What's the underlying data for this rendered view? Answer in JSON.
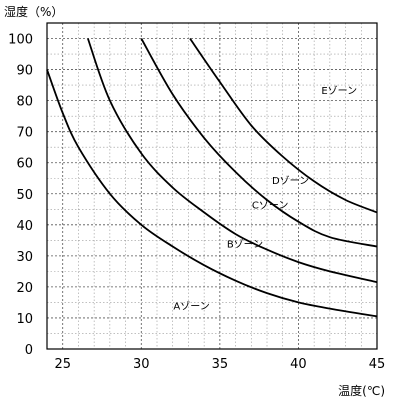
{
  "chart_data": {
    "type": "line",
    "ylabel": "湿度（%）",
    "xlabel": "温度(℃)",
    "xlim": [
      24,
      45
    ],
    "ylim": [
      0,
      105
    ],
    "x_ticks": [
      25,
      30,
      35,
      40,
      45
    ],
    "y_ticks": [
      0,
      10,
      20,
      30,
      40,
      50,
      60,
      70,
      80,
      90,
      100
    ],
    "grid": true,
    "series": [
      {
        "x": [
          24,
          25,
          26,
          28,
          30,
          32,
          34,
          36,
          38,
          40,
          42,
          45
        ],
        "y": [
          90,
          76,
          65,
          50,
          40,
          33,
          27,
          22,
          18,
          15,
          13,
          10.5
        ]
      },
      {
        "x": [
          26.6,
          28,
          30,
          32,
          34,
          36,
          38,
          40,
          42,
          45
        ],
        "y": [
          100,
          80,
          63,
          52,
          44,
          37,
          32,
          28,
          25,
          21.5
        ]
      },
      {
        "x": [
          30,
          32,
          34,
          36,
          38,
          40,
          42,
          45
        ],
        "y": [
          100,
          82,
          68,
          57,
          48,
          41,
          36,
          33
        ]
      },
      {
        "x": [
          33.1,
          35,
          37,
          39,
          41,
          43,
          45
        ],
        "y": [
          100,
          86,
          72,
          62,
          54,
          48,
          44
        ]
      }
    ],
    "annotations": [
      {
        "text": "Aゾーン",
        "x": 33.2,
        "y": 14
      },
      {
        "text": "Bゾーン",
        "x": 36.6,
        "y": 34
      },
      {
        "text": "Cゾーン",
        "x": 38.2,
        "y": 46.5
      },
      {
        "text": "Dゾーン",
        "x": 39.5,
        "y": 54.5
      },
      {
        "text": "Eゾーン",
        "x": 42.6,
        "y": 83.5
      }
    ]
  }
}
